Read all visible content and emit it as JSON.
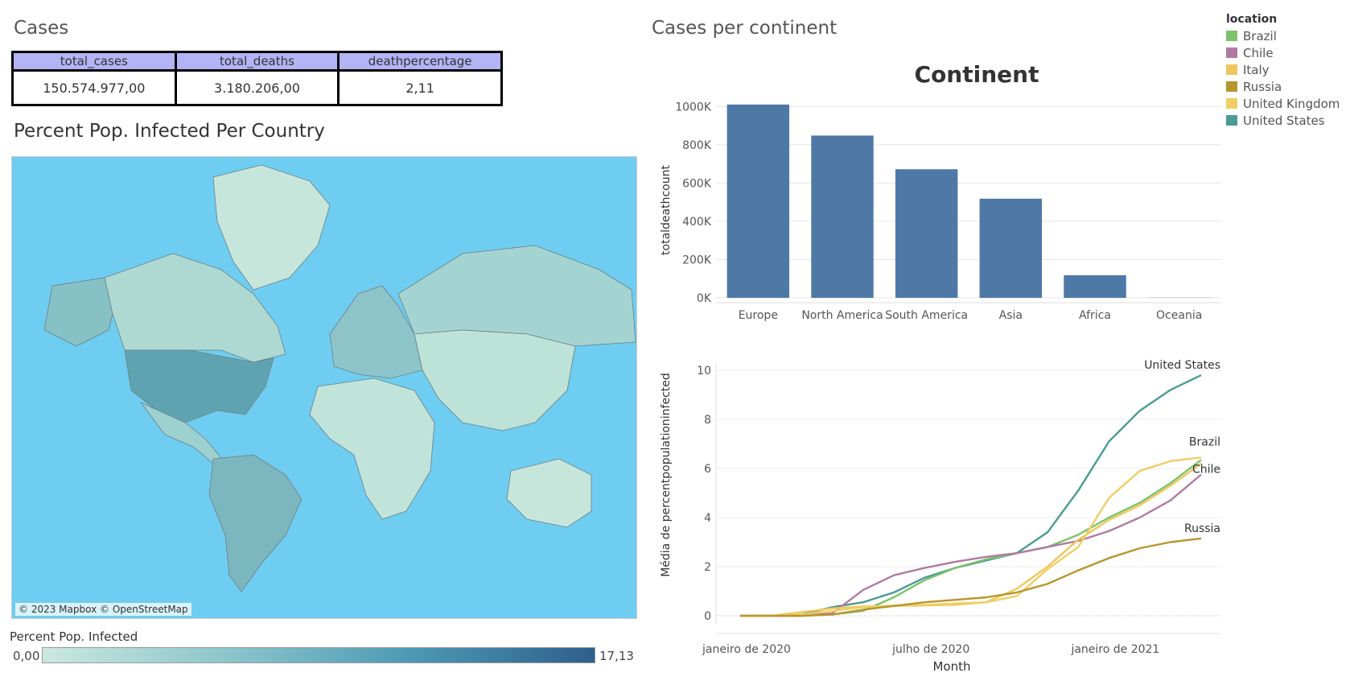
{
  "cases_title": "Cases",
  "kpi": {
    "headers": [
      "total_cases",
      "total_deaths",
      "deathpercentage"
    ],
    "values": [
      "150.574.977,00",
      "3.180.206,00",
      "2,11"
    ]
  },
  "map": {
    "title": "Percent Pop. Infected Per Country",
    "attribution": "© 2023 Mapbox © OpenStreetMap",
    "legend_title": "Percent Pop. Infected",
    "legend_min": "0,00",
    "legend_max": "17,13",
    "colors": {
      "water": "#6ecdf0",
      "low": "#cbe8df",
      "high": "#2e5f8c"
    }
  },
  "right_title": "Cases per continent",
  "legend": {
    "title": "location",
    "items": [
      {
        "name": "Brazil",
        "color": "#7ac36a"
      },
      {
        "name": "Chile",
        "color": "#b07aa1"
      },
      {
        "name": "Italy",
        "color": "#f0c75e"
      },
      {
        "name": "Russia",
        "color": "#b8962e"
      },
      {
        "name": "United Kingdom",
        "color": "#f1ce63"
      },
      {
        "name": "United States",
        "color": "#4a9a95"
      }
    ]
  },
  "chart_data": [
    {
      "type": "bar",
      "title": "Continent",
      "ylabel": "totaldeathcount",
      "categories": [
        "Europe",
        "North America",
        "South America",
        "Asia",
        "Africa",
        "Oceania"
      ],
      "values": [
        1010000,
        848000,
        672000,
        518000,
        118000,
        1000
      ],
      "ylim": [
        0,
        1060000
      ],
      "yticks": [
        0,
        200000,
        400000,
        600000,
        800000,
        1000000
      ],
      "ytick_labels": [
        "0K",
        "200K",
        "400K",
        "600K",
        "800K",
        "1000K"
      ],
      "color": "#4e79a7",
      "grid": true
    },
    {
      "type": "line",
      "ylabel": "Média de percentpopulationinfected",
      "xlabel": "Month",
      "x": [
        "2020-01",
        "2020-02",
        "2020-03",
        "2020-04",
        "2020-05",
        "2020-06",
        "2020-07",
        "2020-08",
        "2020-09",
        "2020-10",
        "2020-11",
        "2020-12",
        "2021-01",
        "2021-02",
        "2021-03",
        "2021-04"
      ],
      "xticks": [
        {
          "x": "2020-01",
          "label": "janeiro de 2020"
        },
        {
          "x": "2020-07",
          "label": "julho de 2020"
        },
        {
          "x": "2021-01",
          "label": "janeiro de 2021"
        }
      ],
      "ylim": [
        0,
        10
      ],
      "yticks": [
        0,
        2,
        4,
        6,
        8,
        10
      ],
      "grid": true,
      "series": [
        {
          "name": "United States",
          "color": "#4a9a95",
          "label": "United States",
          "values": [
            0,
            0,
            0.05,
            0.35,
            0.55,
            0.95,
            1.55,
            1.95,
            2.25,
            2.55,
            3.4,
            5.1,
            7.1,
            8.35,
            9.2,
            9.8
          ]
        },
        {
          "name": "Brazil",
          "color": "#7ac36a",
          "label": "Brazil",
          "values": [
            0,
            0,
            0,
            0.05,
            0.2,
            0.75,
            1.45,
            1.95,
            2.3,
            2.55,
            2.8,
            3.3,
            4.0,
            4.6,
            5.4,
            6.35
          ]
        },
        {
          "name": "Chile",
          "color": "#b07aa1",
          "label": "Chile",
          "values": [
            0,
            0,
            0,
            0.1,
            1.05,
            1.65,
            1.95,
            2.2,
            2.4,
            2.55,
            2.8,
            3.05,
            3.45,
            4.0,
            4.7,
            5.75
          ]
        },
        {
          "name": "Italy",
          "color": "#f0c75e",
          "label": "",
          "values": [
            0,
            0,
            0.15,
            0.3,
            0.38,
            0.4,
            0.42,
            0.45,
            0.55,
            1.1,
            2.0,
            3.1,
            3.9,
            4.5,
            5.3,
            6.2
          ]
        },
        {
          "name": "United Kingdom",
          "color": "#f1ce63",
          "label": "",
          "values": [
            0,
            0,
            0.05,
            0.2,
            0.35,
            0.42,
            0.45,
            0.5,
            0.55,
            0.8,
            1.9,
            2.8,
            4.8,
            5.9,
            6.3,
            6.45
          ]
        },
        {
          "name": "Russia",
          "color": "#b8962e",
          "label": "Russia",
          "values": [
            0,
            0,
            0,
            0.05,
            0.25,
            0.4,
            0.55,
            0.65,
            0.75,
            0.95,
            1.3,
            1.85,
            2.35,
            2.75,
            3.0,
            3.15
          ]
        }
      ]
    }
  ]
}
